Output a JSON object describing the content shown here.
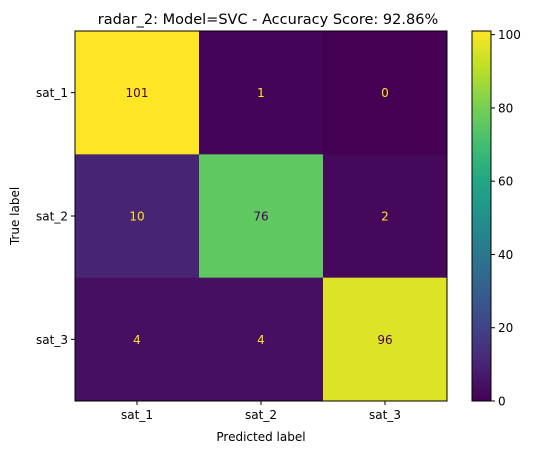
{
  "chart_data": {
    "type": "heatmap",
    "title": "radar_2: Model=SVC - Accuracy Score: 92.86%",
    "xlabel": "Predicted label",
    "ylabel": "True label",
    "x_categories": [
      "sat_1",
      "sat_2",
      "sat_3"
    ],
    "y_categories": [
      "sat_1",
      "sat_2",
      "sat_3"
    ],
    "values": [
      [
        101,
        1,
        0
      ],
      [
        10,
        76,
        2
      ],
      [
        4,
        4,
        96
      ]
    ],
    "colormap": "viridis",
    "colorbar": {
      "range": [
        0,
        101
      ],
      "ticks": [
        "0",
        "20",
        "40",
        "60",
        "80",
        "100"
      ]
    },
    "label_colors": {
      "on_dark": "#fde725",
      "on_light": "#440154"
    },
    "grid": false,
    "legend": "colorbar-right"
  }
}
